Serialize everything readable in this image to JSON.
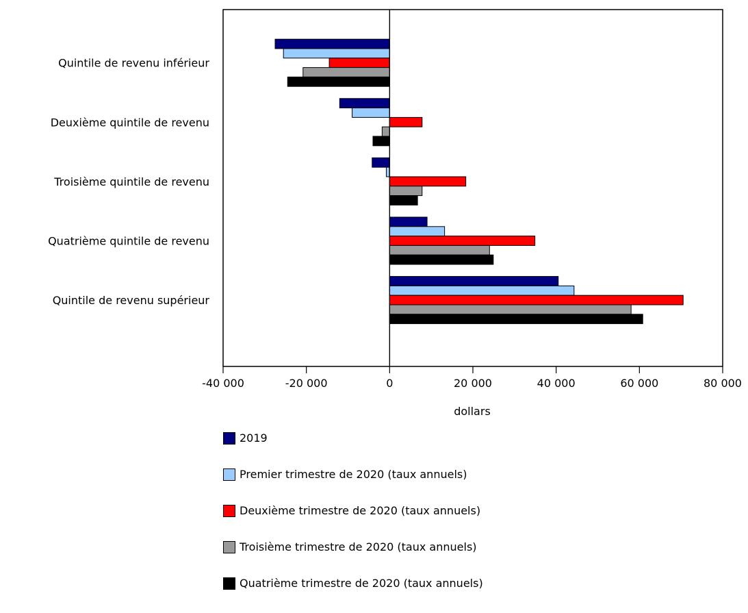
{
  "chart_data": {
    "type": "bar",
    "orientation": "horizontal",
    "title": "",
    "xlabel": "dollars",
    "ylabel": "",
    "xlim": [
      -40000,
      80000
    ],
    "x_ticks": [
      -40000,
      -20000,
      0,
      20000,
      40000,
      60000,
      80000
    ],
    "x_tick_labels": [
      "-40 000",
      "-20 000",
      "0",
      "20 000",
      "40 000",
      "60 000",
      "80 000"
    ],
    "grid": false,
    "legend_position": "bottom",
    "categories": [
      "Quintile de revenu inférieur",
      "Deuxième quintile de revenu",
      "Troisième quintile de revenu",
      "Quatrième quintile de revenu",
      "Quintile de revenu supérieur"
    ],
    "series": [
      {
        "name": "2019",
        "color": "#000080",
        "values": [
          -27500,
          -12000,
          -4200,
          9000,
          40500
        ]
      },
      {
        "name": "Premier trimestre de 2020 (taux annuels)",
        "color": "#99ccff",
        "values": [
          -25500,
          -9000,
          -800,
          13200,
          44300
        ]
      },
      {
        "name": "Deuxième trimestre de 2020 (taux annuels)",
        "color": "#ff0000",
        "values": [
          -14500,
          7800,
          18300,
          34900,
          70500
        ]
      },
      {
        "name": "Troisième trimestre de 2020 (taux annuels)",
        "color": "#999999",
        "values": [
          -20800,
          -1800,
          7800,
          24000,
          58000
        ]
      },
      {
        "name": "Quatrième trimestre de 2020 (taux annuels)",
        "color": "#000000",
        "values": [
          -24500,
          -4000,
          6700,
          24900,
          60800
        ]
      }
    ]
  }
}
